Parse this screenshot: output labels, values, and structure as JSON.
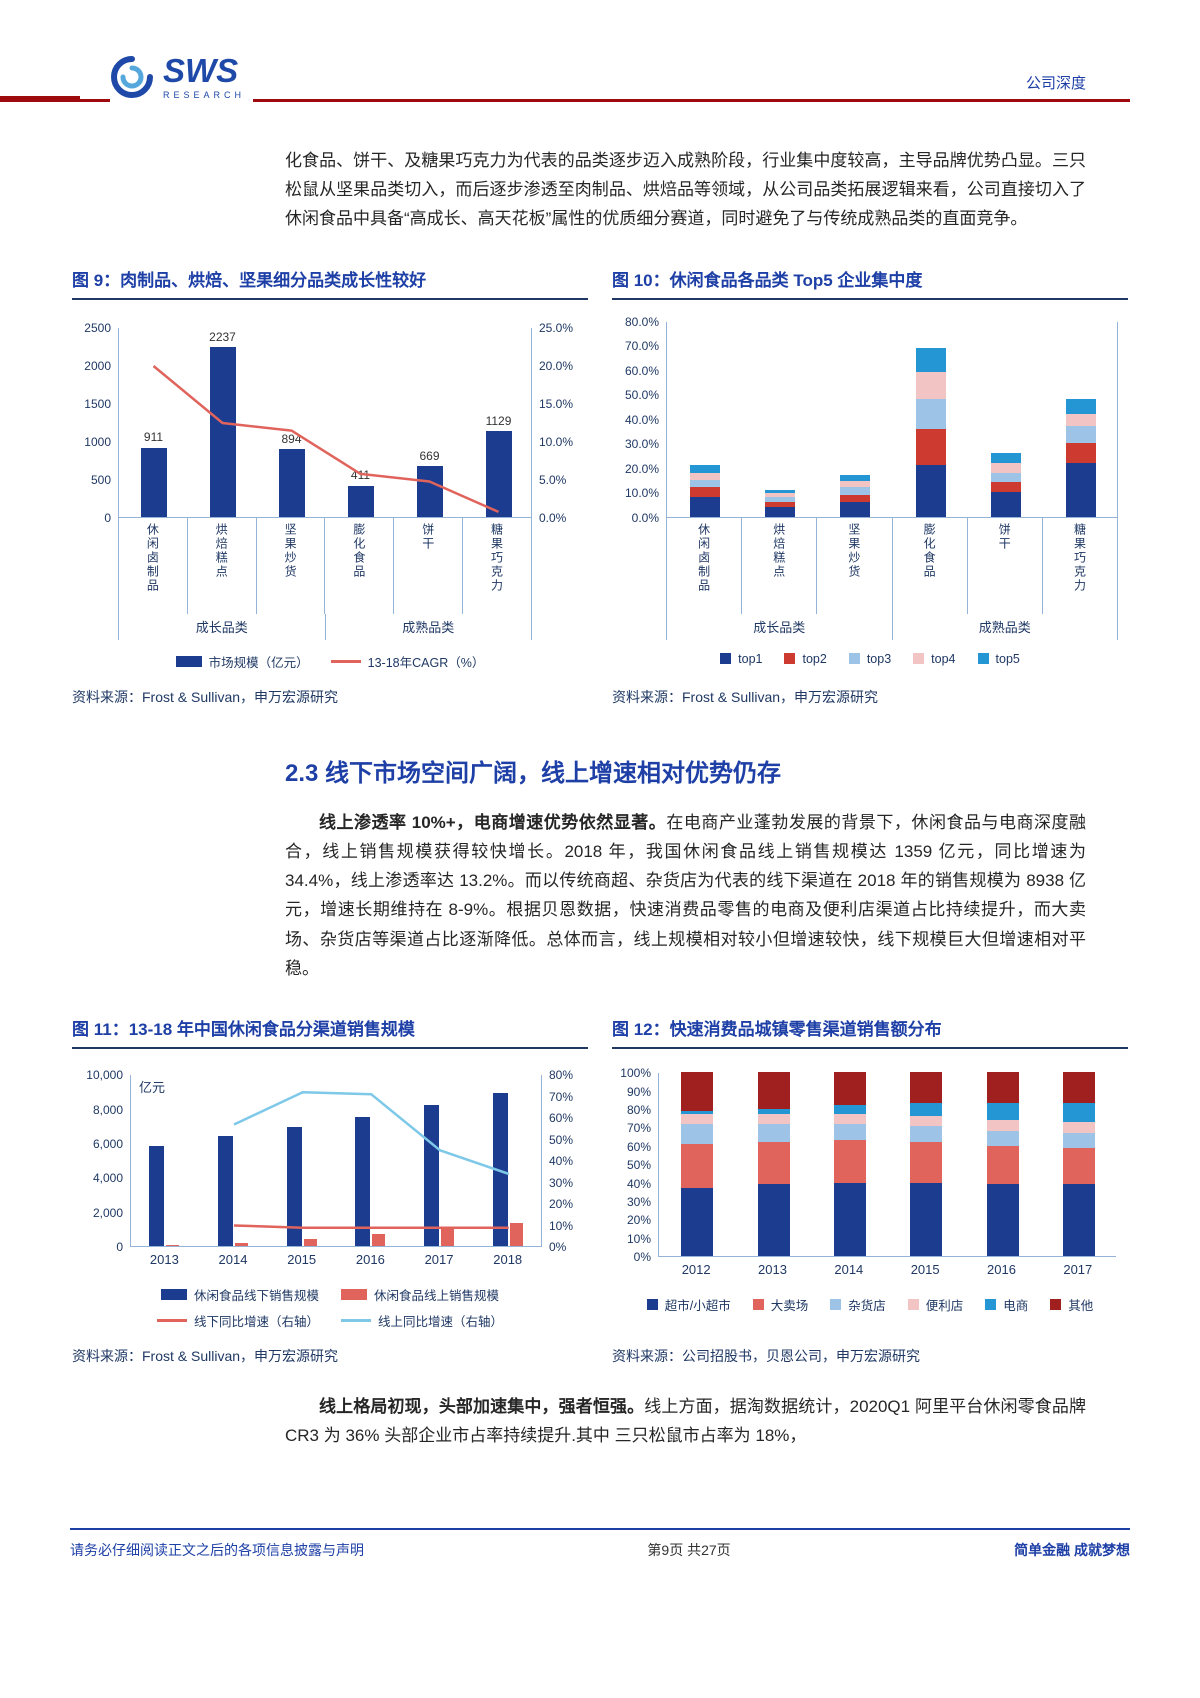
{
  "header": {
    "logo_text": "SWS",
    "logo_sub": "RESEARCH",
    "report_type": "公司深度"
  },
  "paragraphs": {
    "p1": "化食品、饼干、及糖果巧克力为代表的品类逐步迈入成熟阶段，行业集中度较高，主导品牌优势凸显。三只松鼠从坚果品类切入，而后逐步渗透至肉制品、烘焙品等领域，从公司品类拓展逻辑来看，公司直接切入了休闲食品中具备“高成长、高天花板”属性的优质细分赛道，同时避免了与传统成熟品类的直面竞争。",
    "section_heading": "2.3 线下市场空间广阔，线上增速相对优势仍存",
    "p2_lead": "线上渗透率 10%+，电商增速优势依然显著。",
    "p2_rest": "在电商产业蓬勃发展的背景下，休闲食品与电商深度融合，线上销售规模获得较快增长。2018 年，我国休闲食品线上销售规模达 1359 亿元，同比增速为 34.4%，线上渗透率达 13.2%。而以传统商超、杂货店为代表的线下渠道在 2018 年的销售规模为 8938 亿元，增速长期维持在 8-9%。根据贝恩数据，快速消费品零售的电商及便利店渠道占比持续提升，而大卖场、杂货店等渠道占比逐渐降低。总体而言，线上规模相对较小但增速较快，线下规模巨大但增速相对平稳。",
    "p3_lead": "线上格局初现，头部加速集中，强者恒强。",
    "p3_rest": "线上方面，据淘数据统计，2020Q1 阿里平台休闲零食品牌 CR3 为 36% 头部企业市占率持续提升.其中 三只松鼠市占率为 18%，"
  },
  "figures": {
    "fig9": {
      "title": "图 9：肉制品、烘焙、坚果细分品类成长性较好",
      "source": "资料来源：Frost & Sullivan，申万宏源研究"
    },
    "fig10": {
      "title": "图 10：休闲食品各品类 Top5 企业集中度",
      "source": "资料来源：Frost & Sullivan，申万宏源研究"
    },
    "fig11": {
      "title": "图 11：13-18 年中国休闲食品分渠道销售规模",
      "source": "资料来源：Frost & Sullivan，申万宏源研究"
    },
    "fig12": {
      "title": "图 12：快速消费品城镇零售渠道销售额分布",
      "source": "资料来源：公司招股书，贝恩公司，申万宏源研究"
    }
  },
  "footer": {
    "left": "请务必仔细阅读正文之后的各项信息披露与声明",
    "center": "第9页 共27页",
    "right": "简单金融 成就梦想"
  },
  "colors": {
    "navy": "#1c3c90",
    "red": "#e0635c",
    "red2": "#cc3a30",
    "lightblue": "#9dc3e6",
    "pink": "#f2c4c4",
    "brightblue": "#2496d3",
    "darkred": "#a01f1f",
    "skyline": "#7ec8e8",
    "axis_line": "#95b3d7"
  },
  "chart_data": [
    {
      "id": "fig9",
      "type": "bar-line",
      "title": "图 9：肉制品、烘焙、坚果细分品类成长性较好",
      "categories": [
        "休闲卤制品",
        "烘焙糕点",
        "坚果炒货",
        "膨化食品",
        "饼干",
        "糖果巧克力"
      ],
      "bar_series": {
        "name": "市场规模（亿元）",
        "color_key": "navy",
        "values": [
          911,
          2237,
          894,
          411,
          669,
          1129
        ]
      },
      "data_labels": [
        "911",
        "2237",
        "894",
        "411",
        "669",
        "1129"
      ],
      "line_series": {
        "name": "13-18年CAGR（%）",
        "color_key": "red",
        "values": [
          20.0,
          12.5,
          11.5,
          5.8,
          4.8,
          0.8
        ]
      },
      "left_axis": {
        "min": 0,
        "max": 2500,
        "ticks": [
          "0",
          "500",
          "1000",
          "1500",
          "2000",
          "2500"
        ]
      },
      "right_axis": {
        "min": 0,
        "max": 25,
        "ticks": [
          "0.0%",
          "5.0%",
          "10.0%",
          "15.0%",
          "20.0%",
          "25.0%"
        ]
      },
      "groups": [
        {
          "label": "成长品类",
          "span": 3
        },
        {
          "label": "成熟品类",
          "span": 3
        }
      ],
      "legend": [
        {
          "label": "市场规模（亿元）",
          "swatch": "rect",
          "color_key": "navy"
        },
        {
          "label": "13-18年CAGR（%）",
          "swatch": "line",
          "color_key": "red"
        }
      ]
    },
    {
      "id": "fig10",
      "type": "stacked-bar",
      "title": "图 10：休闲食品各品类 Top5 企业集中度",
      "categories": [
        "休闲卤制品",
        "烘焙糕点",
        "坚果炒货",
        "膨化食品",
        "饼干",
        "糖果巧克力"
      ],
      "series": [
        {
          "name": "top1",
          "color_key": "navy",
          "values": [
            8,
            4,
            6,
            21,
            10,
            22
          ]
        },
        {
          "name": "top2",
          "color_key": "red2",
          "values": [
            4,
            2,
            3,
            15,
            4,
            8
          ]
        },
        {
          "name": "top3",
          "color_key": "lightblue",
          "values": [
            3,
            2,
            3,
            12,
            4,
            7
          ]
        },
        {
          "name": "top4",
          "color_key": "pink",
          "values": [
            3,
            1.5,
            2.5,
            11,
            4,
            5
          ]
        },
        {
          "name": "top5",
          "color_key": "brightblue",
          "values": [
            3,
            1.5,
            2.5,
            10,
            4,
            6
          ]
        }
      ],
      "y_axis": {
        "min": 0,
        "max": 80,
        "ticks": [
          "0.0%",
          "10.0%",
          "20.0%",
          "30.0%",
          "40.0%",
          "50.0%",
          "60.0%",
          "70.0%",
          "80.0%"
        ]
      },
      "groups": [
        {
          "label": "成长品类",
          "span": 3
        },
        {
          "label": "成熟品类",
          "span": 3
        }
      ],
      "legend": [
        {
          "label": "top1",
          "swatch": "sq",
          "color_key": "navy"
        },
        {
          "label": "top2",
          "swatch": "sq",
          "color_key": "red2"
        },
        {
          "label": "top3",
          "swatch": "sq",
          "color_key": "lightblue"
        },
        {
          "label": "top4",
          "swatch": "sq",
          "color_key": "pink"
        },
        {
          "label": "top5",
          "swatch": "sq",
          "color_key": "brightblue"
        }
      ]
    },
    {
      "id": "fig11",
      "type": "bar-line-dual",
      "title": "图 11：13-18 年中国休闲食品分渠道销售规模",
      "x": [
        "2013",
        "2014",
        "2015",
        "2016",
        "2017",
        "2018"
      ],
      "bar_series": [
        {
          "name": "休闲食品线下销售规模",
          "color_key": "navy",
          "values": [
            5800,
            6400,
            6900,
            7500,
            8200,
            8900
          ]
        },
        {
          "name": "休闲食品线上销售规模",
          "color_key": "red",
          "values": [
            80,
            200,
            400,
            700,
            1010,
            1359
          ]
        }
      ],
      "line_series": [
        {
          "name": "线下同比增速（右轴）",
          "color_key": "red",
          "values": [
            null,
            10,
            9,
            9,
            9,
            9
          ]
        },
        {
          "name": "线上同比增速（右轴）",
          "color_key": "skyline",
          "values": [
            null,
            57,
            72,
            71,
            45,
            34
          ]
        }
      ],
      "left_axis": {
        "min": 0,
        "max": 10000,
        "label": "亿元",
        "ticks": [
          "0",
          "2,000",
          "4,000",
          "6,000",
          "8,000",
          "10,000"
        ]
      },
      "right_axis": {
        "min": 0,
        "max": 80,
        "ticks": [
          "0%",
          "10%",
          "20%",
          "30%",
          "40%",
          "50%",
          "60%",
          "70%",
          "80%"
        ]
      },
      "legend_rows": [
        [
          {
            "label": "休闲食品线下销售规模",
            "swatch": "rect",
            "color_key": "navy"
          },
          {
            "label": "休闲食品线上销售规模",
            "swatch": "rect",
            "color_key": "red"
          }
        ],
        [
          {
            "label": "线下同比增速（右轴）",
            "swatch": "line",
            "color_key": "red"
          },
          {
            "label": "线上同比增速（右轴）",
            "swatch": "line",
            "color_key": "skyline"
          }
        ]
      ]
    },
    {
      "id": "fig12",
      "type": "stacked-bar-100",
      "title": "图 12：快速消费品城镇零售渠道销售额分布",
      "x": [
        "2012",
        "2013",
        "2014",
        "2015",
        "2016",
        "2017"
      ],
      "series": [
        {
          "name": "超市/小超市",
          "color_key": "navy",
          "values": [
            37,
            39,
            40,
            40,
            39,
            39
          ]
        },
        {
          "name": "大卖场",
          "color_key": "red",
          "values": [
            24,
            23,
            23,
            22,
            21,
            20
          ]
        },
        {
          "name": "杂货店",
          "color_key": "lightblue",
          "values": [
            11,
            10,
            9,
            9,
            8,
            8
          ]
        },
        {
          "name": "便利店",
          "color_key": "pink",
          "values": [
            5,
            5,
            5,
            5,
            6,
            6
          ]
        },
        {
          "name": "电商",
          "color_key": "brightblue",
          "values": [
            2,
            3,
            5,
            7,
            9,
            10
          ]
        },
        {
          "name": "其他",
          "color_key": "darkred",
          "values": [
            21,
            20,
            18,
            17,
            17,
            17
          ]
        }
      ],
      "y_axis": {
        "min": 0,
        "max": 100,
        "ticks": [
          "0%",
          "10%",
          "20%",
          "30%",
          "40%",
          "50%",
          "60%",
          "70%",
          "80%",
          "90%",
          "100%"
        ]
      },
      "legend": [
        {
          "label": "超市/小超市",
          "swatch": "sq",
          "color_key": "navy"
        },
        {
          "label": "大卖场",
          "swatch": "sq",
          "color_key": "red"
        },
        {
          "label": "杂货店",
          "swatch": "sq",
          "color_key": "lightblue"
        },
        {
          "label": "便利店",
          "swatch": "sq",
          "color_key": "pink"
        },
        {
          "label": "电商",
          "swatch": "sq",
          "color_key": "brightblue"
        },
        {
          "label": "其他",
          "swatch": "sq",
          "color_key": "darkred"
        }
      ]
    }
  ]
}
